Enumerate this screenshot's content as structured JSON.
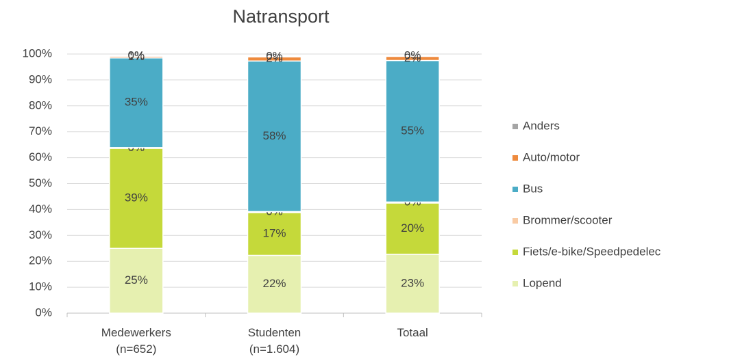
{
  "chart_data": {
    "type": "stacked_bar",
    "title": "Natransport",
    "categories": [
      [
        "Medewerkers",
        "(n=652)"
      ],
      [
        "Studenten",
        "(n=1.604)"
      ],
      [
        "Totaal",
        ""
      ]
    ],
    "series": [
      {
        "name": "Lopend",
        "color": "#e6f0b0",
        "values": [
          25,
          22.3,
          22.7
        ],
        "value_labels": [
          "25%",
          "22%",
          "23%"
        ]
      },
      {
        "name": "Fiets/e-bike/Speedpedelec",
        "color": "#c5d93a",
        "values": [
          38.6,
          16.5,
          19.8
        ],
        "value_labels": [
          "39%",
          "17%",
          "20%"
        ]
      },
      {
        "name": "Brommer/scooter",
        "color": "#f9cba4",
        "values": [
          0.3,
          0.4,
          0.4
        ],
        "value_labels": [
          "0%",
          "0%",
          "0%"
        ]
      },
      {
        "name": "Bus",
        "color": "#4bacc6",
        "values": [
          34.6,
          58.1,
          54.6
        ],
        "value_labels": [
          "35%",
          "58%",
          "55%"
        ]
      },
      {
        "name": "Auto/motor",
        "color": "#ee8a3d",
        "values": [
          0.6,
          1.6,
          1.6
        ],
        "value_labels": [
          "1%",
          "2%",
          "2%"
        ]
      },
      {
        "name": "Anders",
        "color": "#a5a5a5",
        "values": [
          0.2,
          0.2,
          0.2
        ],
        "value_labels": [
          "0%",
          "0%",
          "0%"
        ]
      }
    ],
    "ylim": [
      0,
      100
    ],
    "yticks": [
      {
        "value": 0,
        "label": "0%"
      },
      {
        "value": 10,
        "label": "10%"
      },
      {
        "value": 20,
        "label": "20%"
      },
      {
        "value": 30,
        "label": "30%"
      },
      {
        "value": 40,
        "label": "40%"
      },
      {
        "value": 50,
        "label": "50%"
      },
      {
        "value": 60,
        "label": "60%"
      },
      {
        "value": 70,
        "label": "70%"
      },
      {
        "value": 80,
        "label": "80%"
      },
      {
        "value": 90,
        "label": "90%"
      },
      {
        "value": 100,
        "label": "100%"
      }
    ],
    "grid": true,
    "legend": "right"
  }
}
